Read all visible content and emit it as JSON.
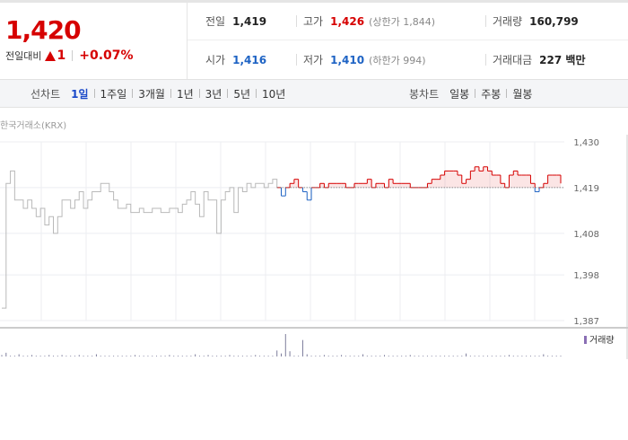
{
  "quote": {
    "price": "1,420",
    "change_label": "전일대비",
    "change_value": "1",
    "change_pct": "+0.07%",
    "colors": {
      "up": "#d60000",
      "down": "#1e63c4"
    }
  },
  "stats": {
    "prev_close": {
      "label": "전일",
      "value": "1,419"
    },
    "high": {
      "label": "고가",
      "value": "1,426",
      "sub": "(상한가 1,844)"
    },
    "volume": {
      "label": "거래량",
      "value": "160,799"
    },
    "open": {
      "label": "시가",
      "value": "1,416"
    },
    "low": {
      "label": "저가",
      "value": "1,410",
      "sub": "(하한가 994)"
    },
    "turnover": {
      "label": "거래대금",
      "value": "227 백만"
    }
  },
  "line_tabs": {
    "label": "선차트",
    "items": [
      "1일",
      "1주일",
      "3개월",
      "1년",
      "3년",
      "5년",
      "10년"
    ],
    "active": 0
  },
  "candle_tabs": {
    "label": "봉차트",
    "items": [
      "일봉",
      "주봉",
      "월봉"
    ]
  },
  "market_name": "한국거래소(KRX)",
  "chart_data": {
    "type": "line",
    "y_ticks": [
      "1,430",
      "1,419",
      "1,408",
      "1,398",
      "1,387"
    ],
    "ylim": [
      1387,
      1430
    ],
    "reference_line": 1419,
    "volume_legend": "거래량",
    "x": [
      0,
      1,
      2,
      3,
      4,
      5,
      6,
      7,
      8,
      9,
      10,
      11,
      12,
      13,
      14,
      15,
      16,
      17,
      18,
      19,
      20,
      21,
      22,
      23,
      24,
      25,
      26,
      27,
      28,
      29,
      30,
      31,
      32,
      33,
      34,
      35,
      36,
      37,
      38,
      39,
      40,
      41,
      42,
      43,
      44,
      45,
      46,
      47,
      48,
      49,
      50,
      51,
      52,
      53,
      54,
      55,
      56,
      57,
      58,
      59,
      60,
      61,
      62,
      63,
      64,
      65,
      66,
      67,
      68,
      69,
      70,
      71,
      72,
      73,
      74,
      75,
      76,
      77,
      78,
      79,
      80,
      81,
      82,
      83,
      84,
      85,
      86,
      87,
      88,
      89,
      90,
      91,
      92,
      93,
      94,
      95,
      96,
      97,
      98,
      99,
      100,
      101,
      102,
      103,
      104,
      105,
      106,
      107,
      108,
      109,
      110,
      111,
      112,
      113,
      114,
      115,
      116,
      117,
      118,
      119,
      120,
      121,
      122,
      123,
      124,
      125,
      126,
      127,
      128,
      129,
      130
    ],
    "series": [
      {
        "values": [
          1390,
          1420,
          1423,
          1416,
          1416,
          1414,
          1416,
          1414,
          1412,
          1414,
          1410,
          1412,
          1408,
          1412,
          1416,
          1416,
          1414,
          1416,
          1418,
          1414,
          1416,
          1418,
          1418,
          1420,
          1420,
          1418,
          1416,
          1414,
          1414,
          1415,
          1413,
          1413,
          1414,
          1413,
          1413,
          1414,
          1414,
          1413,
          1413,
          1414,
          1414,
          1413,
          1415,
          1416,
          1418,
          1415,
          1412,
          1418,
          1416,
          1416,
          1408,
          1416,
          1418,
          1419,
          1413,
          1419,
          1418,
          1420,
          1419,
          1420,
          1420,
          1419,
          1420,
          1421,
          1419,
          1417,
          1419,
          1420,
          1421,
          1419,
          1418,
          1416,
          1419,
          1419,
          1420,
          1419,
          1420,
          1420,
          1420,
          1420,
          1419,
          1419,
          1420,
          1420,
          1420,
          1421,
          1419,
          1420,
          1420,
          1419,
          1421,
          1420,
          1420,
          1420,
          1420,
          1419,
          1419,
          1419,
          1419,
          1420,
          1421,
          1421,
          1422,
          1423,
          1423,
          1423,
          1422,
          1420,
          1421,
          1423,
          1424,
          1423,
          1424,
          1423,
          1422,
          1422,
          1420,
          1419,
          1422,
          1423,
          1422,
          1422,
          1422,
          1420,
          1418,
          1419,
          1420,
          1422,
          1422,
          1422,
          1420
        ]
      }
    ],
    "volume": [
      2,
      5,
      1,
      1,
      3,
      1,
      1,
      2,
      1,
      1,
      1,
      2,
      1,
      1,
      2,
      1,
      1,
      1,
      2,
      1,
      1,
      1,
      3,
      1,
      1,
      1,
      1,
      1,
      1,
      1,
      1,
      2,
      1,
      1,
      1,
      1,
      1,
      1,
      1,
      2,
      1,
      1,
      1,
      1,
      1,
      3,
      1,
      1,
      2,
      1,
      1,
      1,
      1,
      2,
      1,
      1,
      1,
      1,
      1,
      2,
      1,
      1,
      1,
      1,
      8,
      4,
      30,
      7,
      1,
      1,
      22,
      3,
      1,
      1,
      1,
      2,
      1,
      1,
      1,
      2,
      1,
      1,
      1,
      1,
      3,
      1,
      1,
      1,
      1,
      2,
      1,
      1,
      1,
      1,
      1,
      2,
      1,
      1,
      1,
      1,
      1,
      1,
      1,
      1,
      1,
      1,
      1,
      1,
      4,
      1,
      1,
      1,
      1,
      1,
      1,
      1,
      1,
      1,
      2,
      1,
      1,
      1,
      1,
      1,
      1,
      1,
      3,
      1,
      1,
      1,
      1
    ]
  }
}
